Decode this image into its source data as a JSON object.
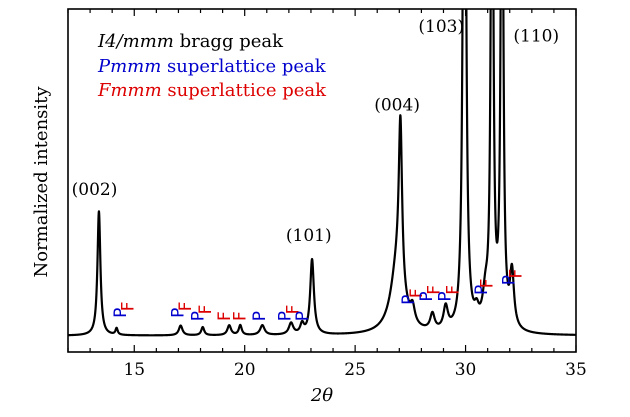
{
  "chart_data": {
    "type": "line",
    "title": "",
    "xlabel": "2θ",
    "ylabel": "Normalized intensity",
    "xlim": [
      12,
      35
    ],
    "ylim": [
      -0.05,
      1.0
    ],
    "x_ticks": [
      15,
      20,
      25,
      30,
      35
    ],
    "x_tick_labels": [
      "15",
      "20",
      "25",
      "30",
      "35"
    ],
    "y_ticks_shown": false,
    "legend": [
      {
        "italic": "I4/mmm",
        "suffix": " bragg peak",
        "color": "#000000"
      },
      {
        "italic": "Pmmm",
        "suffix": " superlattice peak",
        "color": "#0000cc"
      },
      {
        "italic": "Fmmm",
        "suffix": " superlattice peak",
        "color": "#dd0000"
      }
    ],
    "legend_position": "top-left",
    "baseline": 0.0,
    "peaks": [
      {
        "x": 13.4,
        "h": 0.38,
        "w": 0.08
      },
      {
        "x": 14.2,
        "h": 0.02,
        "w": 0.06
      },
      {
        "x": 17.1,
        "h": 0.03,
        "w": 0.1
      },
      {
        "x": 18.1,
        "h": 0.025,
        "w": 0.08
      },
      {
        "x": 19.3,
        "h": 0.03,
        "w": 0.1
      },
      {
        "x": 19.8,
        "h": 0.03,
        "w": 0.08
      },
      {
        "x": 20.8,
        "h": 0.03,
        "w": 0.12
      },
      {
        "x": 22.1,
        "h": 0.035,
        "w": 0.12
      },
      {
        "x": 22.6,
        "h": 0.03,
        "w": 0.1
      },
      {
        "x": 23.05,
        "h": 0.23,
        "w": 0.1
      },
      {
        "x": 26.9,
        "h": 0.2,
        "w": 0.35
      },
      {
        "x": 27.05,
        "h": 0.5,
        "w": 0.09
      },
      {
        "x": 27.6,
        "h": 0.05,
        "w": 0.12
      },
      {
        "x": 28.5,
        "h": 0.05,
        "w": 0.12
      },
      {
        "x": 29.1,
        "h": 0.07,
        "w": 0.12
      },
      {
        "x": 29.95,
        "h": 2.5,
        "w": 0.07
      },
      {
        "x": 30.5,
        "h": 0.04,
        "w": 0.12
      },
      {
        "x": 30.9,
        "h": 0.09,
        "w": 0.15
      },
      {
        "x": 31.2,
        "h": 2.0,
        "w": 0.06
      },
      {
        "x": 31.65,
        "h": 2.0,
        "w": 0.06
      },
      {
        "x": 32.1,
        "h": 0.17,
        "w": 0.11
      }
    ],
    "peak_labels": [
      {
        "text": "(002)",
        "x": 13.2,
        "y": 0.43
      },
      {
        "text": "(101)",
        "x": 22.9,
        "y": 0.29
      },
      {
        "text": "(004)",
        "x": 26.9,
        "y": 0.69
      },
      {
        "text": "(103)",
        "x": 28.9,
        "y": 0.93
      },
      {
        "text": "(110)",
        "x": 33.2,
        "y": 0.9
      }
    ],
    "superlattice_marks": [
      {
        "x": 14.4,
        "y": 0.07,
        "letter": "P",
        "color": "#0000cc"
      },
      {
        "x": 14.75,
        "y": 0.09,
        "letter": "F",
        "color": "#dd0000"
      },
      {
        "x": 17.0,
        "y": 0.07,
        "letter": "P",
        "color": "#0000cc"
      },
      {
        "x": 17.35,
        "y": 0.09,
        "letter": "F",
        "color": "#dd0000"
      },
      {
        "x": 17.9,
        "y": 0.06,
        "letter": "P",
        "color": "#0000cc"
      },
      {
        "x": 18.25,
        "y": 0.08,
        "letter": "F",
        "color": "#dd0000"
      },
      {
        "x": 19.1,
        "y": 0.06,
        "letter": "F",
        "color": "#dd0000"
      },
      {
        "x": 19.8,
        "y": 0.06,
        "letter": "F",
        "color": "#dd0000"
      },
      {
        "x": 20.7,
        "y": 0.06,
        "letter": "P",
        "color": "#0000cc"
      },
      {
        "x": 21.85,
        "y": 0.06,
        "letter": "P",
        "color": "#0000cc"
      },
      {
        "x": 22.2,
        "y": 0.08,
        "letter": "F",
        "color": "#dd0000"
      },
      {
        "x": 22.65,
        "y": 0.06,
        "letter": "P",
        "color": "#0000cc"
      },
      {
        "x": 27.45,
        "y": 0.11,
        "letter": "P",
        "color": "#0000cc"
      },
      {
        "x": 27.8,
        "y": 0.13,
        "letter": "F",
        "color": "#dd0000"
      },
      {
        "x": 28.25,
        "y": 0.12,
        "letter": "P",
        "color": "#0000cc"
      },
      {
        "x": 28.6,
        "y": 0.14,
        "letter": "F",
        "color": "#dd0000"
      },
      {
        "x": 29.1,
        "y": 0.12,
        "letter": "P",
        "color": "#0000cc"
      },
      {
        "x": 29.45,
        "y": 0.14,
        "letter": "F",
        "color": "#dd0000"
      },
      {
        "x": 30.75,
        "y": 0.14,
        "letter": "P",
        "color": "#0000cc"
      },
      {
        "x": 31.0,
        "y": 0.16,
        "letter": "F",
        "color": "#dd0000"
      },
      {
        "x": 32.0,
        "y": 0.17,
        "letter": "P",
        "color": "#0000cc"
      },
      {
        "x": 32.3,
        "y": 0.19,
        "letter": "F",
        "color": "#dd0000"
      }
    ]
  }
}
